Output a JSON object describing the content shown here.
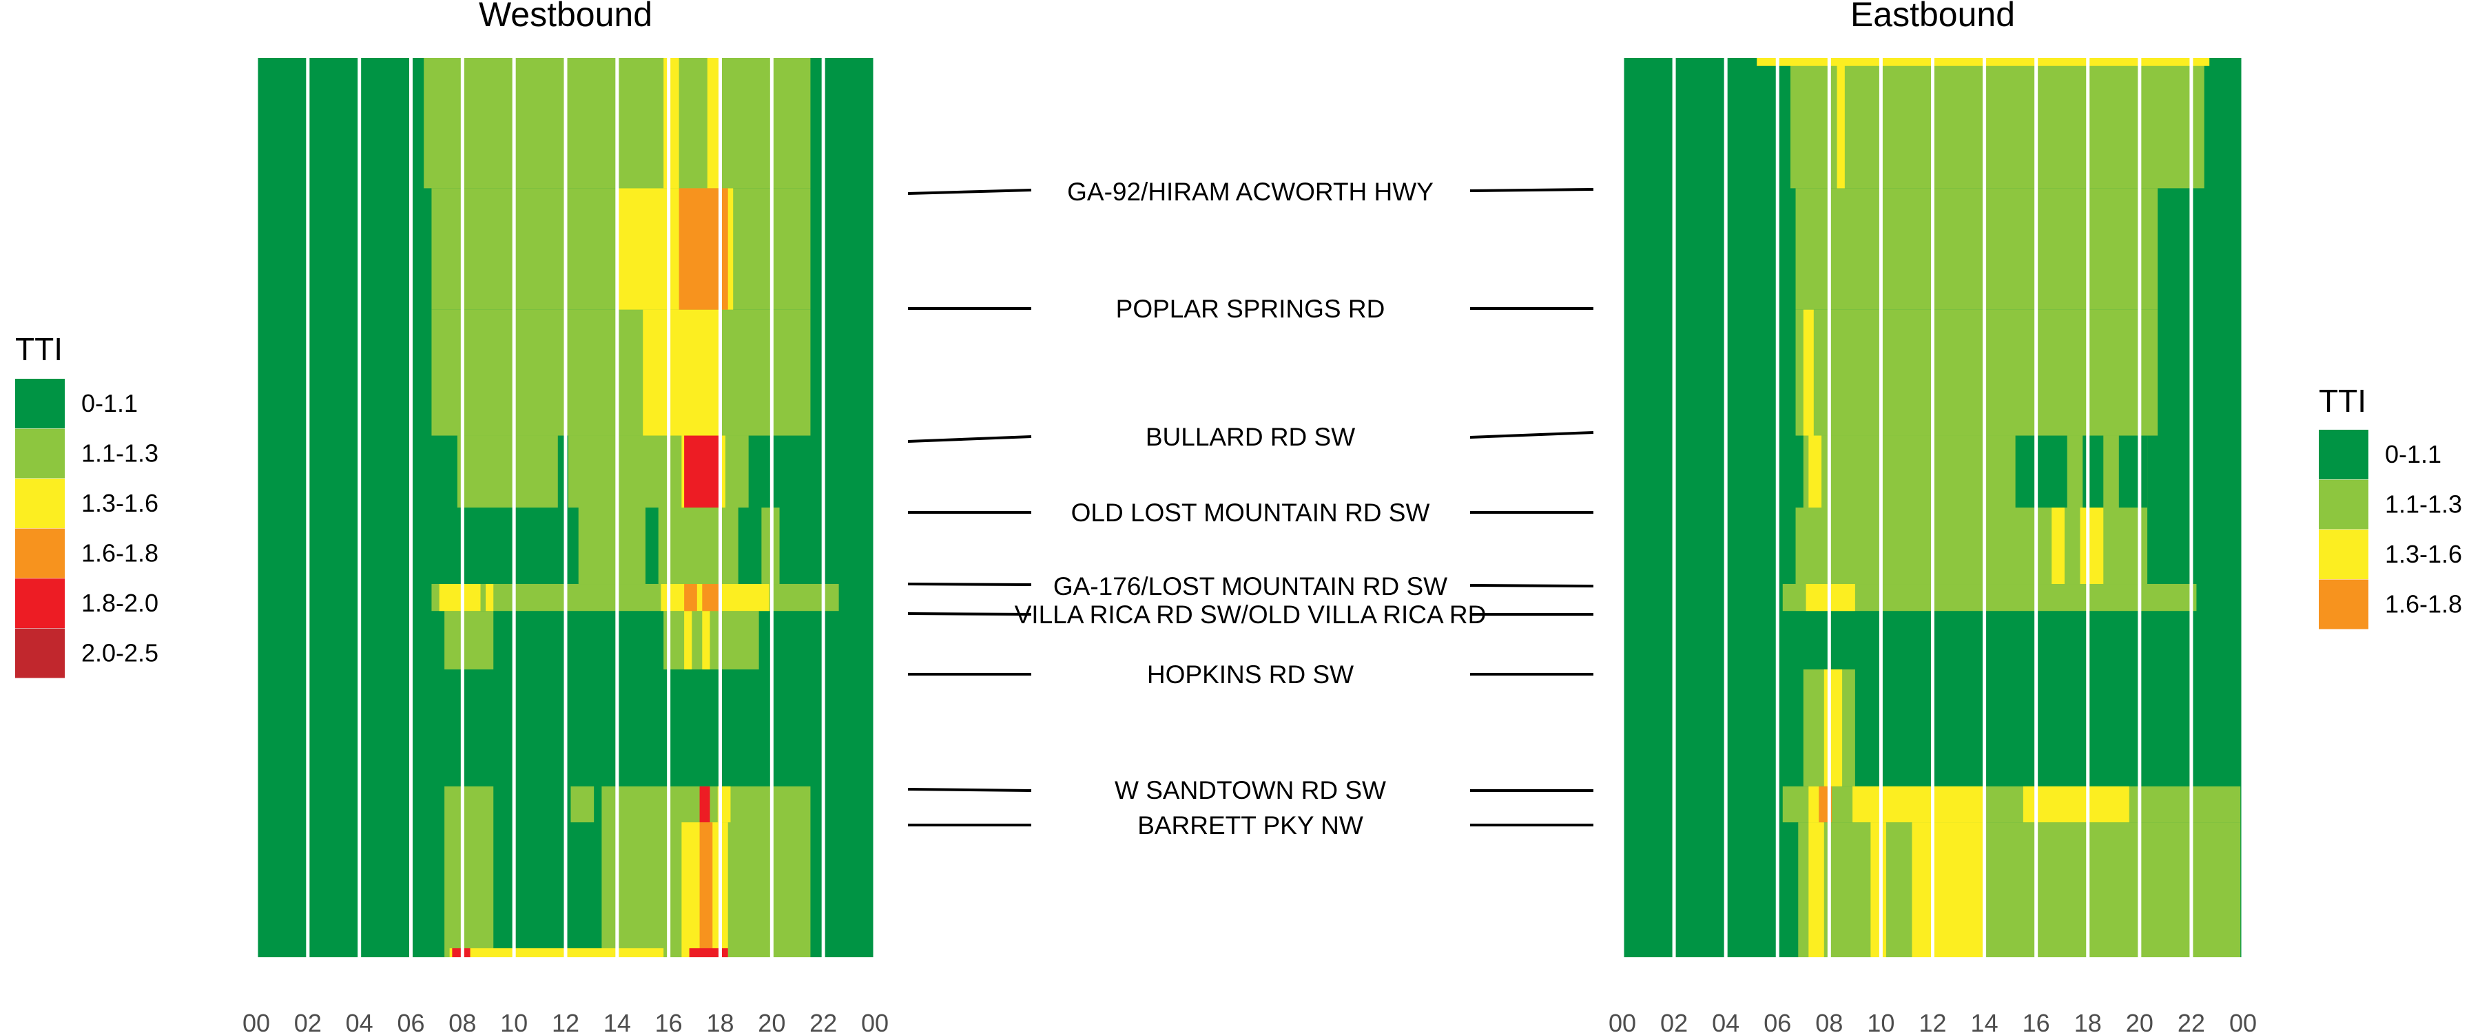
{
  "chart_data": {
    "type": "heatmap",
    "xlabel": "",
    "ylabel": "",
    "x_tick_labels": [
      "00",
      "02",
      "04",
      "06",
      "08",
      "10",
      "12",
      "14",
      "16",
      "18",
      "20",
      "22",
      "00"
    ],
    "x_range_hours": [
      0,
      24
    ],
    "road_labels": [
      "GA-92/HIRAM ACWORTH HWY",
      "POPLAR SPRINGS RD",
      "BULLARD RD SW",
      "OLD LOST MOUNTAIN RD SW",
      "GA-176/LOST MOUNTAIN RD SW",
      "VILLA RICA RD SW/OLD VILLA RICA RD",
      "HOPKINS RD SW",
      "W SANDTOWN RD SW",
      "BARRETT PKY NW"
    ],
    "categories": {
      "0-1.1": "#009444",
      "1.1-1.3": "#8dc63f",
      "1.3-1.6": "#fcee21",
      "1.6-1.8": "#f7931e",
      "1.8-2.0": "#ed1c24",
      "2.0-2.5": "#c1272d"
    },
    "panels": [
      {
        "title": "Westbound",
        "legend_title": "TTI",
        "legend": [
          "0-1.1",
          "1.1-1.3",
          "1.3-1.6",
          "1.6-1.8",
          "1.8-2.0",
          "2.0-2.5"
        ],
        "cells": [
          {
            "y": [
              0,
              100
            ],
            "x": [
              0,
              24
            ],
            "c": "0-1.1"
          },
          {
            "y": [
              0,
              14.5
            ],
            "x": [
              6.5,
              21.5
            ],
            "c": "1.1-1.3"
          },
          {
            "y": [
              14.5,
              28
            ],
            "x": [
              6.8,
              21.5
            ],
            "c": "1.1-1.3"
          },
          {
            "y": [
              28,
              42
            ],
            "x": [
              6.8,
              21.5
            ],
            "c": "1.1-1.3"
          },
          {
            "y": [
              42,
              50
            ],
            "x": [
              7.8,
              11.7
            ],
            "c": "1.1-1.3"
          },
          {
            "y": [
              42,
              50
            ],
            "x": [
              12.1,
              19.1
            ],
            "c": "1.1-1.3"
          },
          {
            "y": [
              50,
              58.5
            ],
            "x": [
              12.5,
              15.1
            ],
            "c": "1.1-1.3"
          },
          {
            "y": [
              50,
              58.5
            ],
            "x": [
              15.6,
              18.7
            ],
            "c": "1.1-1.3"
          },
          {
            "y": [
              50,
              58.5
            ],
            "x": [
              19.6,
              20.3
            ],
            "c": "1.1-1.3"
          },
          {
            "y": [
              58.5,
              61.5
            ],
            "x": [
              6.8,
              22.6
            ],
            "c": "1.1-1.3"
          },
          {
            "y": [
              61.5,
              68
            ],
            "x": [
              7.3,
              9.2
            ],
            "c": "1.1-1.3"
          },
          {
            "y": [
              61.5,
              68
            ],
            "x": [
              15.8,
              19.5
            ],
            "c": "1.1-1.3"
          },
          {
            "y": [
              81,
              85
            ],
            "x": [
              12.2,
              13.1
            ],
            "c": "1.1-1.3"
          },
          {
            "y": [
              81,
              100
            ],
            "x": [
              7.3,
              9.2
            ],
            "c": "1.1-1.3"
          },
          {
            "y": [
              81,
              100
            ],
            "x": [
              13.4,
              21.5
            ],
            "c": "1.1-1.3"
          },
          {
            "y": [
              14.5,
              28
            ],
            "x": [
              14,
              18.5
            ],
            "c": "1.3-1.6"
          },
          {
            "y": [
              28,
              42
            ],
            "x": [
              15,
              18
            ],
            "c": "1.3-1.6"
          },
          {
            "y": [
              0,
              14.5
            ],
            "x": [
              15.8,
              16.4
            ],
            "c": "1.3-1.6"
          },
          {
            "y": [
              0,
              14.5
            ],
            "x": [
              17.5,
              18
            ],
            "c": "1.3-1.6"
          },
          {
            "y": [
              42,
              50
            ],
            "x": [
              16.5,
              18.2
            ],
            "c": "1.3-1.6"
          },
          {
            "y": [
              58.5,
              61.5
            ],
            "x": [
              7.1,
              8.7
            ],
            "c": "1.3-1.6"
          },
          {
            "y": [
              58.5,
              61.5
            ],
            "x": [
              8.9,
              9.2
            ],
            "c": "1.3-1.6"
          },
          {
            "y": [
              58.5,
              61.5
            ],
            "x": [
              15.7,
              19.9
            ],
            "c": "1.3-1.6"
          },
          {
            "y": [
              61.5,
              68
            ],
            "x": [
              16.6,
              16.9
            ],
            "c": "1.3-1.6"
          },
          {
            "y": [
              61.5,
              68
            ],
            "x": [
              17.3,
              17.6
            ],
            "c": "1.3-1.6"
          },
          {
            "y": [
              81,
              85
            ],
            "x": [
              17.9,
              18.4
            ],
            "c": "1.3-1.6"
          },
          {
            "y": [
              85,
              100
            ],
            "x": [
              16.5,
              18.3
            ],
            "c": "1.3-1.6"
          },
          {
            "y": [
              99,
              100
            ],
            "x": [
              7.5,
              15.8
            ],
            "c": "1.3-1.6"
          },
          {
            "y": [
              14.5,
              28
            ],
            "x": [
              16.4,
              18.3
            ],
            "c": "1.6-1.8"
          },
          {
            "y": [
              58.5,
              61.5
            ],
            "x": [
              16.6,
              17.1
            ],
            "c": "1.6-1.8"
          },
          {
            "y": [
              58.5,
              61.5
            ],
            "x": [
              17.3,
              18
            ],
            "c": "1.6-1.8"
          },
          {
            "y": [
              85,
              100
            ],
            "x": [
              17.2,
              17.7
            ],
            "c": "1.6-1.8"
          },
          {
            "y": [
              42,
              50
            ],
            "x": [
              16.6,
              18
            ],
            "c": "1.8-2.0"
          },
          {
            "y": [
              81,
              85
            ],
            "x": [
              17.2,
              17.6
            ],
            "c": "1.8-2.0"
          },
          {
            "y": [
              99,
              100
            ],
            "x": [
              7.6,
              8.3
            ],
            "c": "1.8-2.0"
          },
          {
            "y": [
              99,
              100
            ],
            "x": [
              16.8,
              18.3
            ],
            "c": "1.8-2.0"
          }
        ]
      },
      {
        "title": "Eastbound",
        "legend_title": "TTI",
        "legend": [
          "0-1.1",
          "1.1-1.3",
          "1.3-1.6",
          "1.6-1.8"
        ],
        "cells": [
          {
            "y": [
              0,
              100
            ],
            "x": [
              0,
              24
            ],
            "c": "0-1.1"
          },
          {
            "y": [
              0,
              14.5
            ],
            "x": [
              6.5,
              22.5
            ],
            "c": "1.1-1.3"
          },
          {
            "y": [
              14.5,
              28
            ],
            "x": [
              6.7,
              20.7
            ],
            "c": "1.1-1.3"
          },
          {
            "y": [
              28,
              42
            ],
            "x": [
              6.7,
              20.7
            ],
            "c": "1.1-1.3"
          },
          {
            "y": [
              42,
              50
            ],
            "x": [
              7,
              20.3
            ],
            "c": "1.1-1.3"
          },
          {
            "y": [
              50,
              58.5
            ],
            "x": [
              6.7,
              20.3
            ],
            "c": "1.1-1.3"
          },
          {
            "y": [
              58.5,
              61.5
            ],
            "x": [
              6.2,
              22.2
            ],
            "c": "1.1-1.3"
          },
          {
            "y": [
              68,
              81
            ],
            "x": [
              7,
              9
            ],
            "c": "1.1-1.3"
          },
          {
            "y": [
              81,
              85
            ],
            "x": [
              6.2,
              23.9
            ],
            "c": "1.1-1.3"
          },
          {
            "y": [
              85,
              100
            ],
            "x": [
              6.8,
              23.9
            ],
            "c": "1.1-1.3"
          },
          {
            "y": [
              42,
              50
            ],
            "x": [
              15.2,
              17.2
            ],
            "c": "0-1.1"
          },
          {
            "y": [
              42,
              50
            ],
            "x": [
              17.8,
              18.6
            ],
            "c": "0-1.1"
          },
          {
            "y": [
              42,
              50
            ],
            "x": [
              19.2,
              20.3
            ],
            "c": "0-1.1"
          },
          {
            "y": [
              0,
              14.5
            ],
            "x": [
              8.3,
              8.6
            ],
            "c": "1.3-1.6"
          },
          {
            "y": [
              0,
              0.9
            ],
            "x": [
              5.2,
              22.7
            ],
            "c": "1.3-1.6"
          },
          {
            "y": [
              28,
              42
            ],
            "x": [
              7,
              7.4
            ],
            "c": "1.3-1.6"
          },
          {
            "y": [
              42,
              50
            ],
            "x": [
              7.2,
              7.7
            ],
            "c": "1.3-1.6"
          },
          {
            "y": [
              50,
              58.5
            ],
            "x": [
              16.6,
              17.1
            ],
            "c": "1.3-1.6"
          },
          {
            "y": [
              50,
              58.5
            ],
            "x": [
              17.7,
              18.6
            ],
            "c": "1.3-1.6"
          },
          {
            "y": [
              58.5,
              61.5
            ],
            "x": [
              7.1,
              9
            ],
            "c": "1.3-1.6"
          },
          {
            "y": [
              68,
              81
            ],
            "x": [
              7.8,
              8.5
            ],
            "c": "1.3-1.6"
          },
          {
            "y": [
              81,
              85
            ],
            "x": [
              7.2,
              7.6
            ],
            "c": "1.3-1.6"
          },
          {
            "y": [
              81,
              85
            ],
            "x": [
              8.9,
              14
            ],
            "c": "1.3-1.6"
          },
          {
            "y": [
              81,
              85
            ],
            "x": [
              15.5,
              19.6
            ],
            "c": "1.3-1.6"
          },
          {
            "y": [
              85,
              100
            ],
            "x": [
              7.2,
              7.8
            ],
            "c": "1.3-1.6"
          },
          {
            "y": [
              85,
              100
            ],
            "x": [
              11.2,
              14
            ],
            "c": "1.3-1.6"
          },
          {
            "y": [
              85,
              100
            ],
            "x": [
              9.6,
              10.2
            ],
            "c": "1.3-1.6"
          },
          {
            "y": [
              81,
              85
            ],
            "x": [
              7.6,
              8.1
            ],
            "c": "1.6-1.8"
          }
        ]
      }
    ]
  }
}
